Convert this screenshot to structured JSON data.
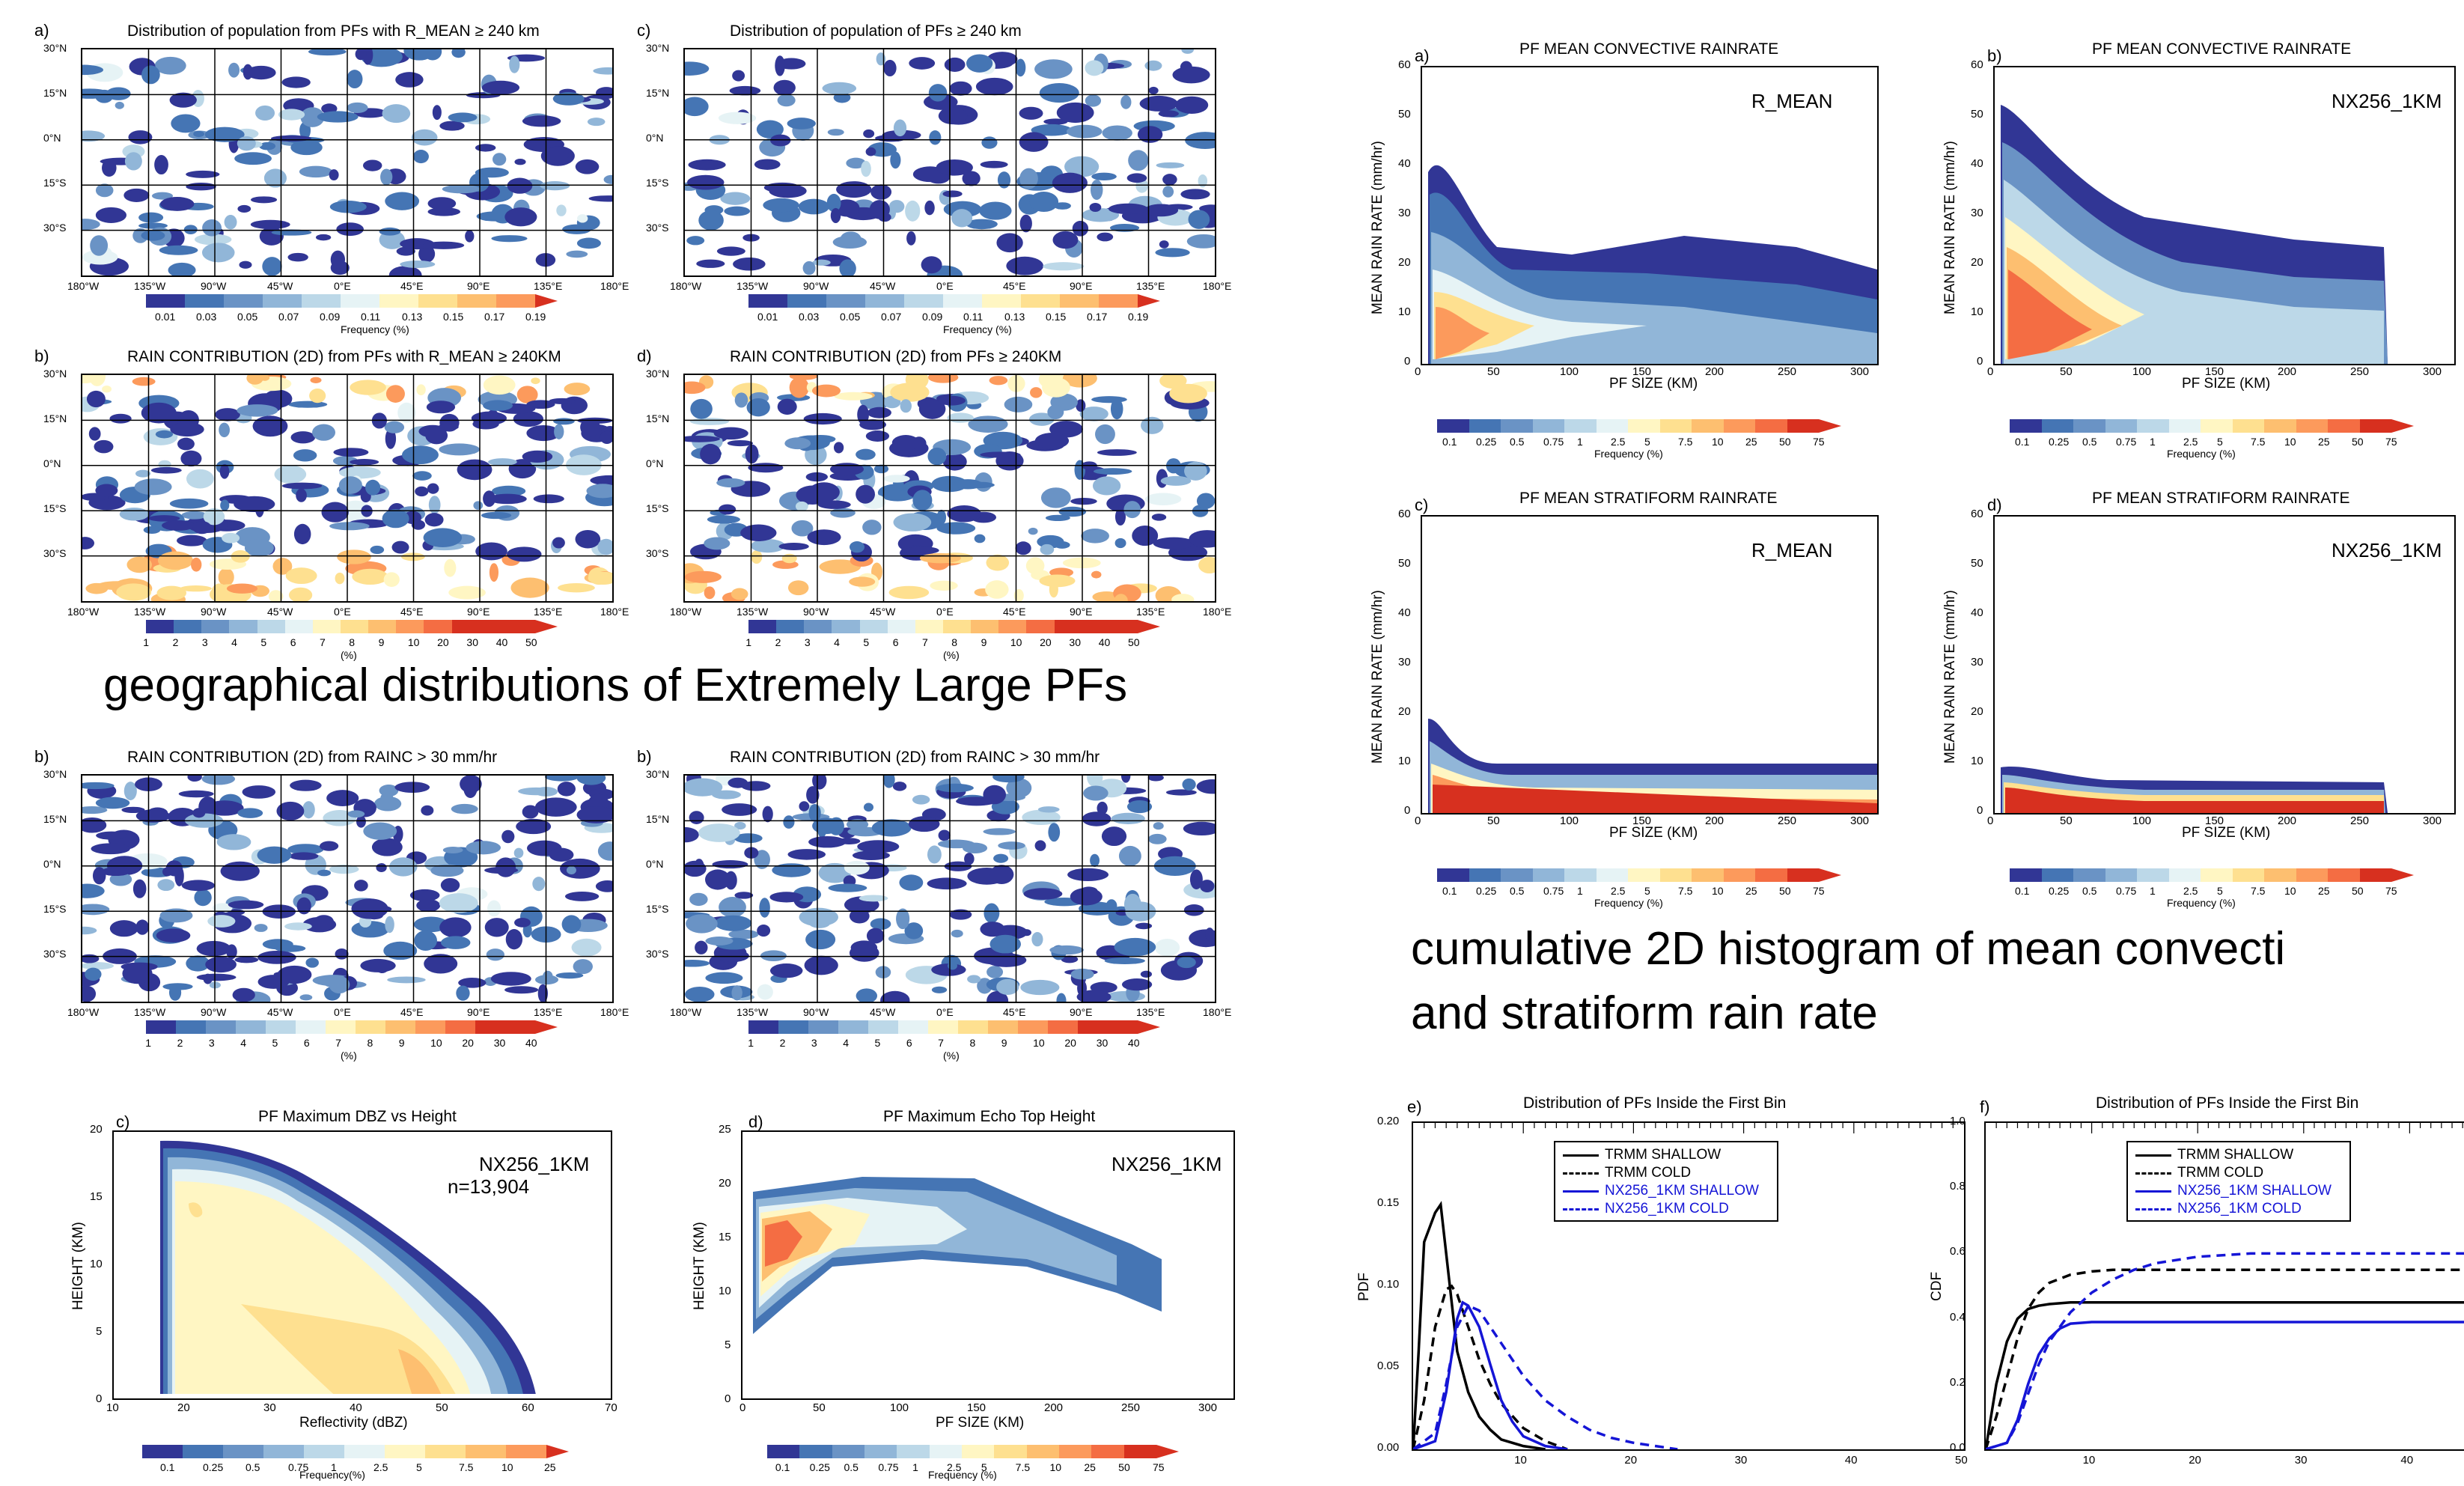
{
  "colors": {
    "scale": [
      "#313695",
      "#4575b4",
      "#6a93c5",
      "#91b6d8",
      "#bcd8e8",
      "#e6f3f5",
      "#fff6c3",
      "#fee090",
      "#fdbf70",
      "#fc9a5c",
      "#f46d43",
      "#d7301f"
    ],
    "trmm": "#000000",
    "nx": "#1515d6"
  },
  "maps": [
    {
      "label": "a)",
      "title": "Distribution of population from PFs with R_MEAN ≥ 240 km",
      "cbar_ticks": [
        "0.01",
        "0.03",
        "0.05",
        "0.07",
        "0.09",
        "0.11",
        "0.13",
        "0.15",
        "0.17",
        "0.19"
      ],
      "cbar_title": "Frequency (%)"
    },
    {
      "label": "c)",
      "title": "Distribution of population of PFs ≥ 240 km",
      "cbar_ticks": [
        "0.01",
        "0.03",
        "0.05",
        "0.07",
        "0.09",
        "0.11",
        "0.13",
        "0.15",
        "0.17",
        "0.19"
      ],
      "cbar_title": "Frequency (%)"
    },
    {
      "label": "b)",
      "title": "RAIN CONTRIBUTION (2D) from PFs with R_MEAN ≥ 240KM",
      "cbar_ticks": [
        "1",
        "2",
        "3",
        "4",
        "5",
        "6",
        "7",
        "8",
        "9",
        "10",
        "20",
        "30",
        "40",
        "50"
      ],
      "cbar_title": "(%)"
    },
    {
      "label": "d)",
      "title": "RAIN CONTRIBUTION (2D) from PFs ≥ 240KM",
      "cbar_ticks": [
        "1",
        "2",
        "3",
        "4",
        "5",
        "6",
        "7",
        "8",
        "9",
        "10",
        "20",
        "30",
        "40",
        "50"
      ],
      "cbar_title": "(%)"
    },
    {
      "label": "b)",
      "title": "RAIN CONTRIBUTION (2D) from RAINC > 30 mm/hr",
      "cbar_ticks": [
        "1",
        "2",
        "3",
        "4",
        "5",
        "6",
        "7",
        "8",
        "9",
        "10",
        "20",
        "30",
        "40"
      ],
      "cbar_title": "(%)"
    },
    {
      "label": "b)",
      "title": "RAIN CONTRIBUTION (2D) from RAINC > 30 mm/hr",
      "cbar_ticks": [
        "1",
        "2",
        "3",
        "4",
        "5",
        "6",
        "7",
        "8",
        "9",
        "10",
        "20",
        "30",
        "40"
      ],
      "cbar_title": "(%)"
    }
  ],
  "map_lon_ticks": [
    "180°W",
    "135°W",
    "90°W",
    "45°W",
    "0°E",
    "45°E",
    "90°E",
    "135°E",
    "180°E"
  ],
  "map_lat_ticks": [
    "30°N",
    "15°N",
    "0°N",
    "15°S",
    "30°S"
  ],
  "headings": {
    "left": "geographical distributions of Extremely Large PFs",
    "right_line1": "cumulative 2D histogram of mean convecti",
    "right_line2": "and stratiform rain rate"
  },
  "hist_panels": [
    {
      "label": "a)",
      "title": "PF MEAN CONVECTIVE RAINRATE",
      "tag": "R_MEAN",
      "ylabel": "MEAN RAIN RATE (mm/hr)",
      "xlabel": "PF SIZE (KM)"
    },
    {
      "label": "b)",
      "title": "PF MEAN CONVECTIVE RAINRATE",
      "tag": "NX256_1KM",
      "ylabel": "MEAN RAIN RATE (mm/hr)",
      "xlabel": "PF SIZE (KM)"
    },
    {
      "label": "c)",
      "title": "PF MEAN STRATIFORM RAINRATE",
      "tag": "R_MEAN",
      "ylabel": "MEAN RAIN RATE (mm/hr)",
      "xlabel": "PF SIZE (KM)"
    },
    {
      "label": "d)",
      "title": "PF MEAN STRATIFORM RAINRATE",
      "tag": "NX256_1KM",
      "ylabel": "MEAN RAIN RATE (mm/hr)",
      "xlabel": "PF SIZE (KM)"
    }
  ],
  "hist_cbar": {
    "ticks": [
      "0.1",
      "0.25",
      "0.5",
      "0.75",
      "1",
      "2.5",
      "5",
      "7.5",
      "10",
      "25",
      "50",
      "75"
    ],
    "title": "Frequency (%)"
  },
  "dbz_panel": {
    "label": "c)",
    "title": "PF Maximum DBZ vs Height",
    "tag": "NX256_1KM",
    "count": "n=13,904",
    "xlabel": "Reflectivity (dBZ)",
    "ylabel": "HEIGHT (KM)"
  },
  "echo_panel": {
    "label": "d)",
    "title": "PF Maximum Echo Top Height",
    "tag": "NX256_1KM",
    "xlabel": "PF SIZE (KM)",
    "ylabel": "HEIGHT (KM)"
  },
  "bottom_cbar": {
    "ticks": [
      "0.1",
      "0.25",
      "0.5",
      "0.75",
      "1",
      "2.5",
      "5",
      "7.5",
      "10",
      "25"
    ],
    "title": "Frequency(%)"
  },
  "bottom_cbar2": {
    "ticks": [
      "0.1",
      "0.25",
      "0.5",
      "0.75",
      "1",
      "2.5",
      "5",
      "7.5",
      "10",
      "25",
      "50",
      "75"
    ],
    "title": "Frequency (%)"
  },
  "chart_data": [
    {
      "type": "line",
      "label": "e)",
      "title": "Distribution of PFs Inside the First Bin",
      "ylabel": "PDF",
      "xlim": [
        0,
        50
      ],
      "ylim": [
        0,
        0.2
      ],
      "x_ticks": [
        10,
        20,
        30,
        40,
        50
      ],
      "y_ticks": [
        0.0,
        0.05,
        0.1,
        0.15,
        0.2
      ],
      "series": [
        {
          "name": "TRMM SHALLOW",
          "style": "solid",
          "color": "#000000",
          "x": [
            0,
            0.5,
            1,
            2,
            2.5,
            3,
            4,
            5,
            6,
            7,
            8,
            10,
            12
          ],
          "y": [
            0,
            0.06,
            0.127,
            0.145,
            0.15,
            0.12,
            0.06,
            0.035,
            0.02,
            0.012,
            0.006,
            0.002,
            0
          ]
        },
        {
          "name": "TRMM COLD",
          "style": "dashed",
          "color": "#000000",
          "x": [
            0,
            1,
            2,
            3,
            3.5,
            4,
            5,
            6,
            7,
            8,
            10,
            12,
            14
          ],
          "y": [
            0,
            0.03,
            0.075,
            0.098,
            0.1,
            0.095,
            0.075,
            0.055,
            0.04,
            0.028,
            0.013,
            0.005,
            0
          ]
        },
        {
          "name": "NX256_1KM SHALLOW",
          "style": "solid",
          "color": "#1515d6",
          "x": [
            0,
            2,
            3,
            4,
            4.5,
            5,
            6,
            7,
            8,
            9,
            10,
            12,
            14
          ],
          "y": [
            0,
            0.005,
            0.035,
            0.08,
            0.09,
            0.088,
            0.075,
            0.052,
            0.03,
            0.017,
            0.008,
            0.002,
            0
          ]
        },
        {
          "name": "NX256_1KM COLD",
          "style": "dashed",
          "color": "#1515d6",
          "x": [
            0,
            2,
            3,
            4,
            5,
            6,
            8,
            10,
            12,
            14,
            16,
            18,
            20,
            22,
            24
          ],
          "y": [
            0,
            0.01,
            0.04,
            0.075,
            0.088,
            0.085,
            0.065,
            0.045,
            0.03,
            0.02,
            0.012,
            0.007,
            0.004,
            0.002,
            0
          ]
        }
      ]
    },
    {
      "type": "line",
      "label": "f)",
      "title": "Distribution of PFs Inside the First Bin",
      "ylabel": "CDF",
      "xlim": [
        0,
        50
      ],
      "ylim": [
        0,
        1.0
      ],
      "x_ticks": [
        10,
        20,
        30,
        40
      ],
      "y_ticks": [
        0.0,
        0.2,
        0.4,
        0.6,
        0.8,
        1.0
      ],
      "series": [
        {
          "name": "TRMM SHALLOW",
          "style": "solid",
          "color": "#000000",
          "x": [
            0,
            1,
            2,
            3,
            4,
            5,
            6,
            8,
            10,
            50
          ],
          "y": [
            0,
            0.2,
            0.33,
            0.4,
            0.43,
            0.44,
            0.445,
            0.45,
            0.45,
            0.45
          ]
        },
        {
          "name": "TRMM COLD",
          "style": "dashed",
          "color": "#000000",
          "x": [
            0,
            1,
            2,
            3,
            4,
            5,
            6,
            8,
            10,
            12,
            50
          ],
          "y": [
            0,
            0.1,
            0.22,
            0.34,
            0.43,
            0.48,
            0.51,
            0.535,
            0.545,
            0.55,
            0.55
          ]
        },
        {
          "name": "NX256_1KM SHALLOW",
          "style": "solid",
          "color": "#1515d6",
          "x": [
            0,
            2,
            3,
            4,
            5,
            6,
            7,
            8,
            10,
            50
          ],
          "y": [
            0,
            0.02,
            0.09,
            0.2,
            0.29,
            0.34,
            0.37,
            0.385,
            0.39,
            0.39
          ]
        },
        {
          "name": "NX256_1KM COLD",
          "style": "dashed",
          "color": "#1515d6",
          "x": [
            0,
            2,
            3,
            4,
            5,
            6,
            8,
            10,
            12,
            14,
            16,
            20,
            25,
            50
          ],
          "y": [
            0,
            0.02,
            0.08,
            0.17,
            0.26,
            0.33,
            0.42,
            0.48,
            0.52,
            0.55,
            0.57,
            0.59,
            0.6,
            0.6
          ]
        }
      ]
    }
  ]
}
